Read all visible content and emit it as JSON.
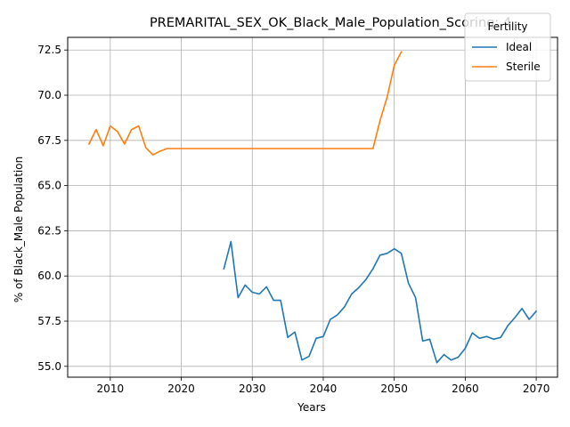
{
  "chart_data": {
    "type": "line",
    "title": "PREMARITAL_SEX_OK_Black_Male_Population_Scoring: 4",
    "xlabel": "Years",
    "ylabel": "% of Black_Male Population",
    "xlim": [
      2004,
      2073
    ],
    "ylim": [
      54.4,
      73.2
    ],
    "xticks": [
      2010,
      2020,
      2030,
      2040,
      2050,
      2060,
      2070
    ],
    "yticks": [
      55.0,
      57.5,
      60.0,
      62.5,
      65.0,
      67.5,
      70.0,
      72.5
    ],
    "ytick_labels": [
      "55.0",
      "57.5",
      "60.0",
      "62.5",
      "65.0",
      "67.5",
      "70.0",
      "72.5"
    ],
    "grid": true,
    "legend": {
      "title": "Fertility",
      "placement": "top-right"
    },
    "series": [
      {
        "name": "Ideal",
        "color": "#1f77b4",
        "x": [
          2026,
          2027,
          2028,
          2029,
          2030,
          2031,
          2032,
          2033,
          2034,
          2035,
          2036,
          2037,
          2038,
          2039,
          2040,
          2041,
          2042,
          2043,
          2044,
          2045,
          2046,
          2047,
          2048,
          2049,
          2050,
          2051,
          2052,
          2053,
          2054,
          2055,
          2056,
          2057,
          2058,
          2059,
          2060,
          2061,
          2062,
          2063,
          2064,
          2065,
          2066,
          2067,
          2068,
          2069,
          2070
        ],
        "y": [
          60.4,
          61.9,
          58.8,
          59.5,
          59.1,
          59.0,
          59.4,
          58.65,
          58.65,
          56.6,
          56.9,
          55.35,
          55.55,
          56.55,
          56.65,
          57.6,
          57.85,
          58.3,
          59.0,
          59.35,
          59.8,
          60.4,
          61.15,
          61.25,
          61.5,
          61.25,
          59.6,
          58.8,
          56.4,
          56.5,
          55.2,
          55.65,
          55.35,
          55.5,
          56.0,
          56.85,
          56.55,
          56.65,
          56.5,
          56.6,
          57.25,
          57.7,
          58.2,
          57.6,
          58.05
        ]
      },
      {
        "name": "Sterile",
        "color": "#ff7f0e",
        "x": [
          2007,
          2008,
          2009,
          2010,
          2011,
          2012,
          2013,
          2014,
          2015,
          2016,
          2017,
          2018,
          2019,
          2020,
          2021,
          2022,
          2023,
          2024,
          2025,
          2026,
          2027,
          2028,
          2029,
          2030,
          2031,
          2032,
          2033,
          2034,
          2035,
          2036,
          2037,
          2038,
          2039,
          2040,
          2041,
          2042,
          2043,
          2044,
          2045,
          2046,
          2047,
          2048,
          2049,
          2050,
          2051
        ],
        "y": [
          67.3,
          68.1,
          67.2,
          68.3,
          68.0,
          67.3,
          68.1,
          68.3,
          67.1,
          66.7,
          66.9,
          67.05,
          67.05,
          67.05,
          67.05,
          67.05,
          67.05,
          67.05,
          67.05,
          67.05,
          67.05,
          67.05,
          67.05,
          67.05,
          67.05,
          67.05,
          67.05,
          67.05,
          67.05,
          67.05,
          67.05,
          67.05,
          67.05,
          67.05,
          67.05,
          67.05,
          67.05,
          67.05,
          67.05,
          67.05,
          67.05,
          68.6,
          69.9,
          71.65,
          72.4
        ]
      }
    ]
  }
}
